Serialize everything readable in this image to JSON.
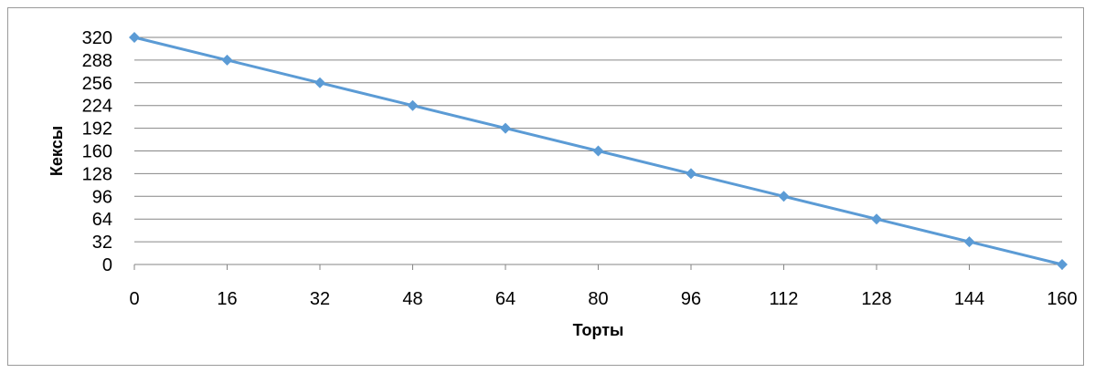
{
  "chart_data": {
    "type": "line",
    "title": "",
    "xlabel": "Торты",
    "ylabel": "Кексы",
    "x": [
      0,
      16,
      32,
      48,
      64,
      80,
      96,
      112,
      128,
      144,
      160
    ],
    "series": [
      {
        "values": [
          320,
          288,
          256,
          224,
          192,
          160,
          128,
          96,
          64,
          32,
          0
        ],
        "color": "#5b9bd5",
        "marker": "diamond"
      }
    ],
    "x_ticks": [
      "0",
      "16",
      "32",
      "48",
      "64",
      "80",
      "96",
      "112",
      "128",
      "144",
      "160"
    ],
    "y_ticks": [
      "0",
      "32",
      "64",
      "96",
      "128",
      "160",
      "192",
      "224",
      "256",
      "288",
      "320"
    ],
    "xlim": [
      0,
      160
    ],
    "ylim": [
      0,
      320
    ],
    "grid": "horizontal",
    "legend": "none"
  }
}
